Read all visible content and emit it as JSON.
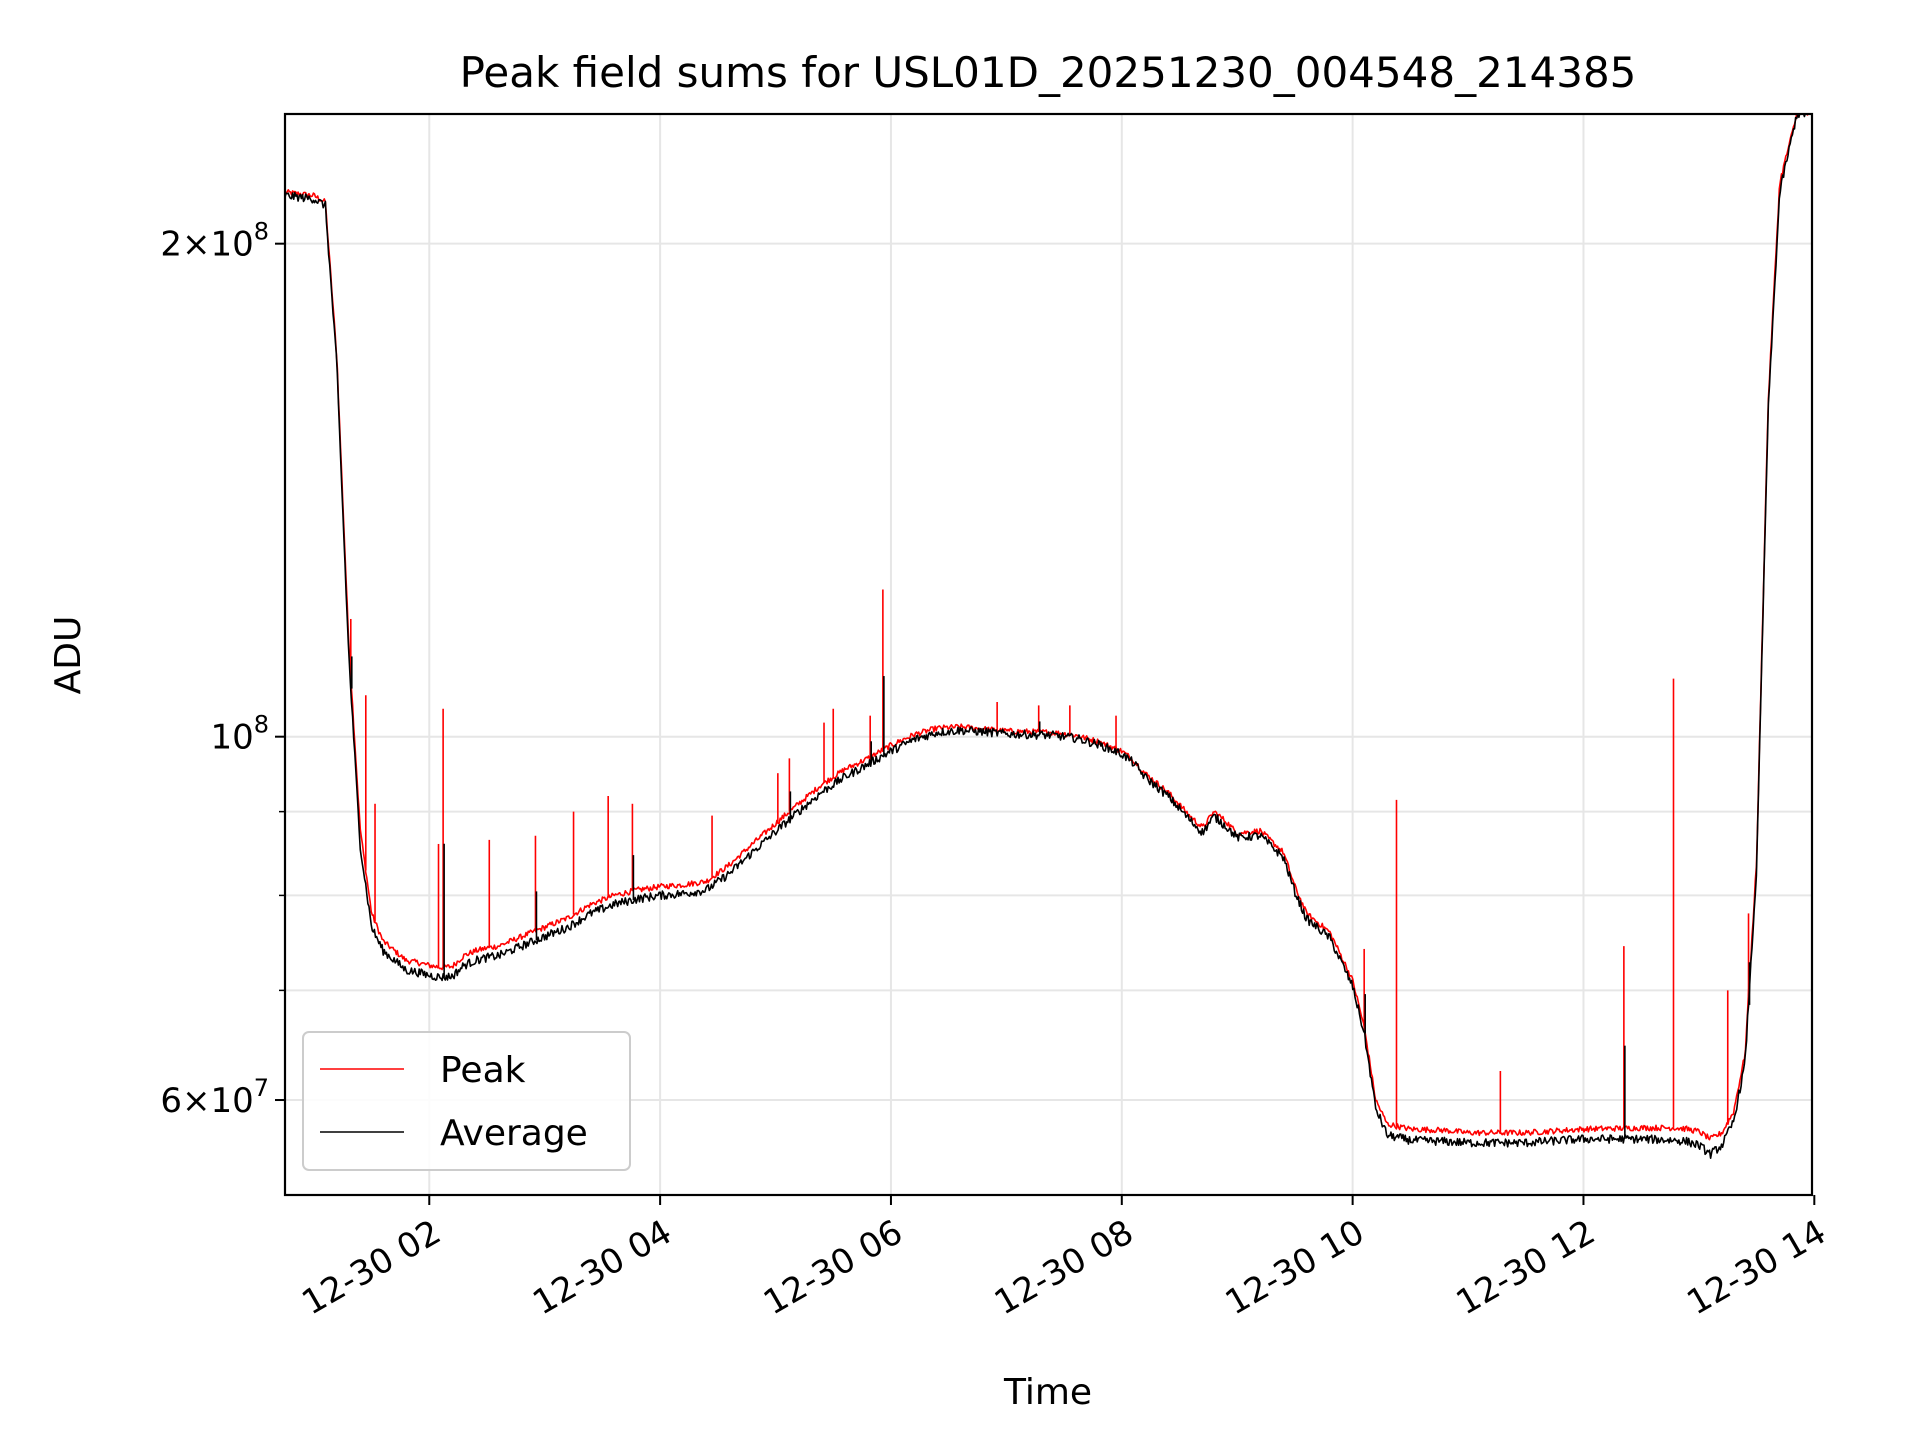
{
  "chart_data": {
    "type": "line",
    "title": "Peak field sums for USL01D_20251230_004548_214385",
    "xlabel": "Time",
    "ylabel": "ADU",
    "yscale": "log",
    "xlim": [
      0.75,
      13.98
    ],
    "ylim": [
      52500000,
      240000000
    ],
    "x_ticks": [
      {
        "value": 2,
        "label": "12-30 02"
      },
      {
        "value": 4,
        "label": "12-30 04"
      },
      {
        "value": 6,
        "label": "12-30 06"
      },
      {
        "value": 8,
        "label": "12-30 08"
      },
      {
        "value": 10,
        "label": "12-30 10"
      },
      {
        "value": 12,
        "label": "12-30 12"
      },
      {
        "value": 14,
        "label": "12-30 14"
      }
    ],
    "y_major_ticks": [
      {
        "value": 200000000,
        "mantissa": "2",
        "exponent": "8"
      },
      {
        "value": 100000000,
        "mantissa": "",
        "exponent": "8"
      },
      {
        "value": 60000000,
        "mantissa": "6",
        "exponent": "7"
      }
    ],
    "y_minor_ticks": [
      70000000,
      80000000,
      90000000
    ],
    "grid": true,
    "legend_position": "lower-left",
    "series": [
      {
        "name": "Peak",
        "color": "#ff0000",
        "x": [
          0.75,
          1.0,
          1.1,
          1.2,
          1.3,
          1.4,
          1.5,
          1.6,
          1.7,
          1.8,
          1.9,
          2.0,
          2.1,
          2.2,
          2.3,
          2.4,
          2.5,
          2.6,
          2.8,
          3.0,
          3.2,
          3.4,
          3.6,
          3.8,
          4.0,
          4.2,
          4.4,
          4.6,
          4.8,
          5.0,
          5.2,
          5.4,
          5.6,
          5.8,
          6.0,
          6.2,
          6.4,
          6.6,
          6.8,
          7.0,
          7.2,
          7.4,
          7.6,
          7.8,
          8.0,
          8.1,
          8.2,
          8.4,
          8.6,
          8.7,
          8.8,
          8.9,
          9.0,
          9.2,
          9.4,
          9.5,
          9.6,
          9.8,
          9.9,
          10.0,
          10.1,
          10.2,
          10.3,
          10.5,
          10.8,
          11.0,
          11.5,
          12.0,
          12.5,
          12.8,
          12.9,
          13.0,
          13.1,
          13.2,
          13.3,
          13.4,
          13.5,
          13.6,
          13.7,
          13.85,
          13.98
        ],
        "y": [
          215000000,
          214000000,
          212000000,
          170000000,
          115000000,
          88000000,
          78000000,
          75000000,
          74000000,
          73000000,
          72800000,
          72500000,
          72300000,
          72400000,
          73500000,
          74000000,
          74300000,
          74500000,
          75500000,
          76500000,
          77500000,
          79000000,
          80000000,
          80600000,
          81000000,
          81200000,
          81600000,
          83500000,
          86000000,
          88500000,
          91000000,
          93500000,
          95500000,
          97000000,
          98800000,
          100300000,
          101200000,
          101400000,
          101100000,
          100800000,
          100700000,
          100600000,
          100200000,
          99300000,
          98000000,
          96800000,
          95000000,
          92500000,
          89300000,
          88000000,
          90000000,
          88800000,
          87300000,
          87600000,
          85000000,
          81000000,
          78000000,
          76000000,
          73500000,
          71000000,
          66500000,
          60000000,
          58000000,
          57600000,
          57500000,
          57300000,
          57300000,
          57600000,
          57700000,
          57700000,
          57600000,
          57400000,
          56800000,
          57300000,
          59000000,
          64000000,
          84000000,
          160000000,
          218000000,
          240000000,
          240000000
        ]
      },
      {
        "name": "Average",
        "color": "#000000",
        "x": [
          0.75,
          1.0,
          1.1,
          1.2,
          1.3,
          1.4,
          1.5,
          1.6,
          1.7,
          1.8,
          1.9,
          2.0,
          2.1,
          2.2,
          2.3,
          2.4,
          2.5,
          2.6,
          2.8,
          3.0,
          3.2,
          3.4,
          3.6,
          3.8,
          4.0,
          4.2,
          4.4,
          4.6,
          4.8,
          5.0,
          5.2,
          5.4,
          5.6,
          5.8,
          6.0,
          6.2,
          6.4,
          6.6,
          6.8,
          7.0,
          7.2,
          7.4,
          7.6,
          7.8,
          8.0,
          8.1,
          8.2,
          8.4,
          8.6,
          8.7,
          8.8,
          8.9,
          9.0,
          9.2,
          9.4,
          9.5,
          9.6,
          9.8,
          9.9,
          10.0,
          10.1,
          10.2,
          10.3,
          10.5,
          10.8,
          11.0,
          11.5,
          12.0,
          12.5,
          12.8,
          12.9,
          13.0,
          13.1,
          13.2,
          13.3,
          13.4,
          13.5,
          13.6,
          13.7,
          13.85,
          13.98
        ],
        "y": [
          214000000,
          213000000,
          211000000,
          168000000,
          113000000,
          86000000,
          76500000,
          74000000,
          73000000,
          72000000,
          71800000,
          71500000,
          71300000,
          71400000,
          72500000,
          73000000,
          73300000,
          73500000,
          74500000,
          75500000,
          76500000,
          78000000,
          79000000,
          79600000,
          80000000,
          80200000,
          80600000,
          82500000,
          85000000,
          87500000,
          90000000,
          92500000,
          94500000,
          96200000,
          98000000,
          99600000,
          100600000,
          100900000,
          100700000,
          100400000,
          100300000,
          100200000,
          99800000,
          98900000,
          97600000,
          96400000,
          94500000,
          92000000,
          88800000,
          87400000,
          89400000,
          88200000,
          86800000,
          87000000,
          84400000,
          80400000,
          77400000,
          75400000,
          72900000,
          70400000,
          65900000,
          59300000,
          57100000,
          56700000,
          56600000,
          56500000,
          56500000,
          56800000,
          56800000,
          56700000,
          56600000,
          56300000,
          55600000,
          56300000,
          58200000,
          63200000,
          83000000,
          158000000,
          215000000,
          240000000,
          240000000
        ]
      }
    ],
    "spikes": [
      {
        "x": 1.32,
        "peak": 118000000
      },
      {
        "x": 1.45,
        "peak": 106000000
      },
      {
        "x": 1.53,
        "peak": 91000000
      },
      {
        "x": 2.12,
        "peak": 104000000
      },
      {
        "x": 2.08,
        "peak": 86000000
      },
      {
        "x": 2.52,
        "peak": 86500000
      },
      {
        "x": 2.92,
        "peak": 87000000
      },
      {
        "x": 3.25,
        "peak": 90000000
      },
      {
        "x": 3.55,
        "peak": 92000000
      },
      {
        "x": 3.76,
        "peak": 91000000
      },
      {
        "x": 4.45,
        "peak": 89500000
      },
      {
        "x": 5.02,
        "peak": 95000000
      },
      {
        "x": 5.12,
        "peak": 97000000
      },
      {
        "x": 5.42,
        "peak": 102000000
      },
      {
        "x": 5.5,
        "peak": 104000000
      },
      {
        "x": 5.82,
        "peak": 103000000
      },
      {
        "x": 5.93,
        "peak": 123000000
      },
      {
        "x": 6.92,
        "peak": 105000000
      },
      {
        "x": 7.28,
        "peak": 104500000
      },
      {
        "x": 7.55,
        "peak": 104500000
      },
      {
        "x": 7.95,
        "peak": 103000000
      },
      {
        "x": 10.1,
        "peak": 74200000
      },
      {
        "x": 10.38,
        "peak": 91500000
      },
      {
        "x": 11.28,
        "peak": 62500000
      },
      {
        "x": 12.35,
        "peak": 74500000
      },
      {
        "x": 12.78,
        "peak": 108500000
      },
      {
        "x": 13.25,
        "peak": 70000000
      },
      {
        "x": 13.43,
        "peak": 78000000
      }
    ]
  }
}
